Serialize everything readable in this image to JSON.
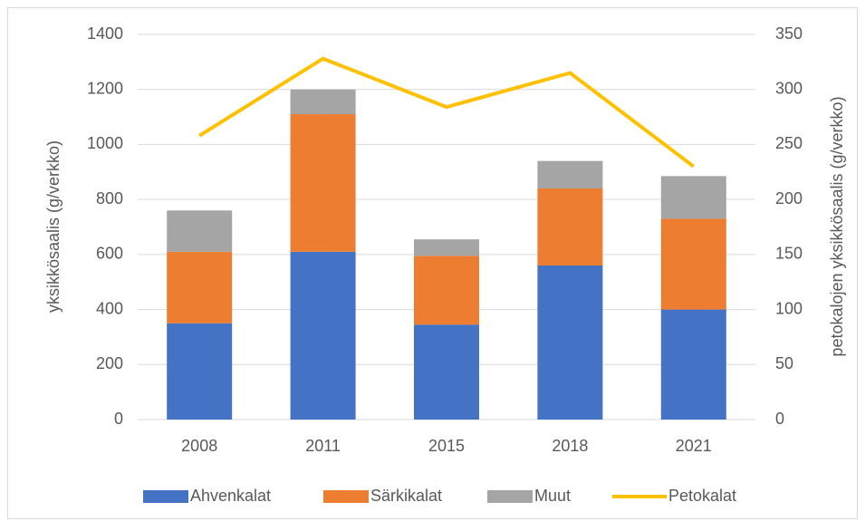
{
  "chart_data": {
    "type": "bar",
    "stacked": true,
    "categories": [
      "2008",
      "2011",
      "2015",
      "2018",
      "2021"
    ],
    "series": [
      {
        "name": "Ahvenkalat",
        "color": "#4472c4",
        "values": [
          350,
          610,
          345,
          560,
          400
        ]
      },
      {
        "name": "Särkikalat",
        "color": "#ed7d31",
        "values": [
          260,
          500,
          250,
          280,
          330
        ]
      },
      {
        "name": "Muut",
        "color": "#a5a5a5",
        "values": [
          150,
          90,
          60,
          100,
          155
        ]
      },
      {
        "name": "Petokalat",
        "color": "#ffc000",
        "type": "line",
        "axis": "y2",
        "values": [
          258,
          328,
          284,
          315,
          230
        ]
      }
    ],
    "ylabel": "yksikkösaalis (g/verkko)",
    "y2label": "petokalojen yksikkösaalis (g/verkko)",
    "ylim": [
      0,
      1400
    ],
    "yticks": [
      0,
      200,
      400,
      600,
      800,
      1000,
      1200,
      1400
    ],
    "y2lim": [
      0,
      350
    ],
    "y2ticks": [
      0,
      50,
      100,
      150,
      200,
      250,
      300,
      350
    ],
    "grid": true,
    "legend": "bottom"
  }
}
